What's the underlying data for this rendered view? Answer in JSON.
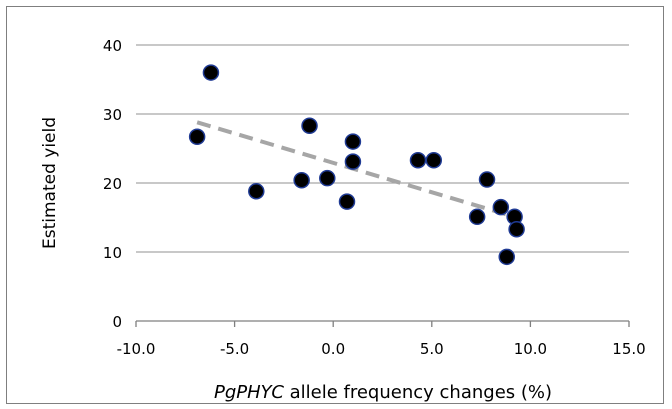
{
  "chart_data": {
    "type": "scatter",
    "title": "",
    "xlabel_italic": "PgPHYC",
    "xlabel_rest": " allele frequency changes (%)",
    "ylabel": "Estimated yield",
    "xlim": [
      -10,
      15
    ],
    "ylim": [
      0,
      40
    ],
    "xticks": [
      -10,
      -5,
      0,
      5,
      10,
      15
    ],
    "yticks": [
      0,
      10,
      20,
      30,
      40
    ],
    "xtick_labels": [
      "-10.0",
      "-5.0",
      "0.0",
      "5.0",
      "10.0",
      "15.0"
    ],
    "ytick_labels": [
      "0",
      "10",
      "20",
      "30",
      "40"
    ],
    "grid": "horizontal",
    "legend": "none",
    "points": [
      {
        "x": -6.2,
        "y": 36.0
      },
      {
        "x": -6.9,
        "y": 26.7
      },
      {
        "x": -3.9,
        "y": 18.8
      },
      {
        "x": -1.6,
        "y": 20.4
      },
      {
        "x": -1.2,
        "y": 28.3
      },
      {
        "x": -0.3,
        "y": 20.7
      },
      {
        "x": 0.7,
        "y": 17.3
      },
      {
        "x": 1.0,
        "y": 26.0
      },
      {
        "x": 1.0,
        "y": 23.1
      },
      {
        "x": 4.3,
        "y": 23.3
      },
      {
        "x": 5.1,
        "y": 23.3
      },
      {
        "x": 7.3,
        "y": 15.1
      },
      {
        "x": 7.8,
        "y": 20.5
      },
      {
        "x": 8.5,
        "y": 16.5
      },
      {
        "x": 9.2,
        "y": 15.1
      },
      {
        "x": 9.3,
        "y": 13.3
      },
      {
        "x": 8.8,
        "y": 9.3
      }
    ],
    "trendline": {
      "x": [
        -6.9,
        9.3
      ],
      "y": [
        28.8,
        15.0
      ],
      "style": "dashed"
    },
    "colors": {
      "point_fill": "#000000",
      "point_stroke": "#1f3a93",
      "trendline": "#a6a6a6",
      "grid": "#a6a6a6",
      "axis": "#7f7f7f"
    }
  }
}
